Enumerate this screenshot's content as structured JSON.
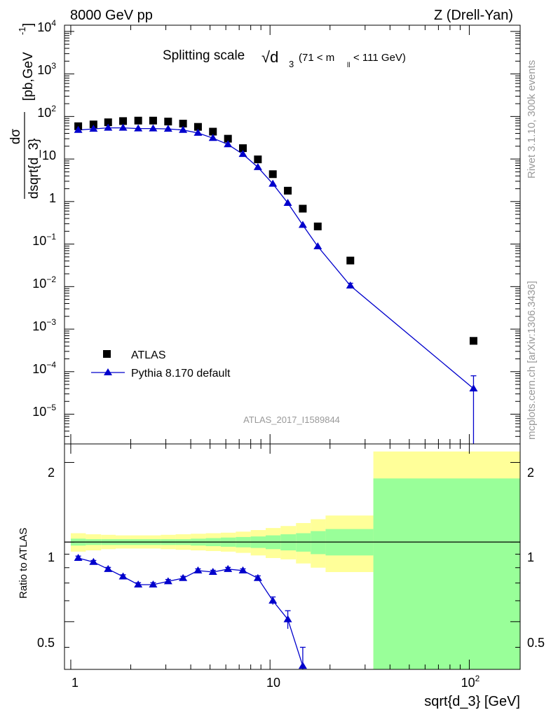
{
  "header": {
    "left": "8000 GeV pp",
    "right": "Z (Drell-Yan)"
  },
  "side_labels": {
    "rivet": "Rivet 3.1.10,  300k events",
    "mcplots": "mcplots.cern.ch [arXiv:1306.3436]"
  },
  "chart_data": {
    "type": "scatter",
    "title_main": "Splitting scale",
    "title_sqrt_symbol": "√d",
    "title_sub": "3",
    "title_range_prefix": "(71 < m",
    "title_range_sub": "ll",
    "title_range_suffix": " < 111 GeV)",
    "watermark": "ATLAS_2017_I1589844",
    "xlabel": "sqrt{d_3} [GeV]",
    "ylabel_num": "dσ",
    "ylabel_den": "dsqrt{d_3}",
    "ylabel_units": "[pb,GeV",
    "ylabel_units_sup": "-1",
    "ylabel_units_end": "]",
    "ratio_ylabel": "Ratio to ATLAS",
    "x_scale": "log",
    "y_scale": "log",
    "xlim": [
      0.93,
      180
    ],
    "ylim": [
      2e-06,
      14000
    ],
    "ratio_ylim": [
      0.33,
      2.35
    ],
    "x_ticks": [
      "1",
      "10",
      "10^2"
    ],
    "y_ticks": [
      "10^4",
      "10^3",
      "10^2",
      "10",
      "1",
      "10^-1",
      "10^-2",
      "10^-3",
      "10^-4",
      "10^-5"
    ],
    "ratio_ticks": [
      "2",
      "1",
      "0.5"
    ],
    "legend_position": "bottom-left",
    "series": [
      {
        "name": "ATLAS",
        "color": "#000000",
        "marker": "square",
        "x": [
          1.09,
          1.3,
          1.54,
          1.83,
          2.18,
          2.59,
          3.08,
          3.66,
          4.35,
          5.17,
          6.15,
          7.31,
          8.69,
          10.33,
          12.28,
          14.6,
          17.36,
          25.3,
          105
        ],
        "y": [
          59,
          65,
          73,
          78,
          80,
          80,
          76,
          68,
          57,
          44,
          30,
          18,
          9.8,
          4.4,
          1.8,
          0.68,
          0.26,
          0.041,
          0.00053
        ]
      },
      {
        "name": "Pythia 8.170 default",
        "color": "#0000cc",
        "marker": "triangle",
        "x": [
          1.09,
          1.3,
          1.54,
          1.83,
          2.18,
          2.59,
          3.08,
          3.66,
          4.35,
          5.17,
          6.15,
          7.31,
          8.69,
          10.33,
          12.28,
          14.6,
          17.36,
          25.3,
          105
        ],
        "y": [
          48,
          51,
          54,
          54,
          52,
          52,
          51,
          48,
          41,
          31,
          22,
          13,
          6.4,
          2.6,
          0.92,
          0.28,
          0.088,
          0.0105,
          4e-05
        ],
        "y_err_lo": [
          1,
          1,
          1,
          1,
          1,
          1,
          1,
          1,
          1,
          1,
          0.5,
          0.3,
          0.2,
          0.1,
          0.05,
          0.02,
          0.008,
          0.0015,
          3.9e-05
        ],
        "y_err_hi": [
          1,
          1,
          1,
          1,
          1,
          1,
          1,
          1,
          1,
          1,
          0.5,
          0.3,
          0.2,
          0.1,
          0.05,
          0.02,
          0.008,
          0.0015,
          4e-05
        ]
      }
    ],
    "ratio": {
      "x": [
        1.09,
        1.3,
        1.54,
        1.83,
        2.18,
        2.59,
        3.08,
        3.66,
        4.35,
        5.17,
        6.15,
        7.31,
        8.69,
        10.33,
        12.28,
        14.6
      ],
      "y": [
        0.87,
        0.84,
        0.79,
        0.74,
        0.69,
        0.69,
        0.71,
        0.73,
        0.78,
        0.77,
        0.79,
        0.78,
        0.73,
        0.6,
        0.51,
        0.34
      ],
      "y_err": [
        0.015,
        0.012,
        0.012,
        0.012,
        0.012,
        0.012,
        0.012,
        0.012,
        0.012,
        0.012,
        0.012,
        0.012,
        0.015,
        0.02,
        0.04,
        0.06
      ],
      "bands": {
        "bins": [
          1.0,
          1.19,
          1.42,
          1.68,
          2.0,
          2.38,
          2.83,
          3.36,
          4.0,
          4.76,
          5.66,
          6.73,
          8.0,
          9.51,
          11.3,
          13.5,
          16.0,
          19.0,
          33.0,
          180
        ],
        "green_lo": [
          0.97,
          0.975,
          0.975,
          0.975,
          0.975,
          0.975,
          0.975,
          0.975,
          0.97,
          0.965,
          0.96,
          0.955,
          0.95,
          0.94,
          0.93,
          0.92,
          0.9,
          0.89,
          0.33
        ],
        "green_hi": [
          1.03,
          1.025,
          1.025,
          1.025,
          1.025,
          1.025,
          1.025,
          1.025,
          1.03,
          1.035,
          1.04,
          1.045,
          1.05,
          1.06,
          1.07,
          1.08,
          1.1,
          1.12,
          1.74
        ],
        "yellow_lo": [
          0.92,
          0.93,
          0.94,
          0.945,
          0.945,
          0.945,
          0.94,
          0.935,
          0.93,
          0.925,
          0.92,
          0.91,
          0.89,
          0.87,
          0.86,
          0.83,
          0.8,
          0.77,
          0.33
        ],
        "yellow_hi": [
          1.08,
          1.07,
          1.065,
          1.06,
          1.06,
          1.06,
          1.065,
          1.07,
          1.075,
          1.08,
          1.085,
          1.095,
          1.11,
          1.13,
          1.15,
          1.18,
          1.22,
          1.26,
          2.2
        ],
        "green_color": "#99ff99",
        "yellow_color": "#ffff99"
      }
    }
  }
}
